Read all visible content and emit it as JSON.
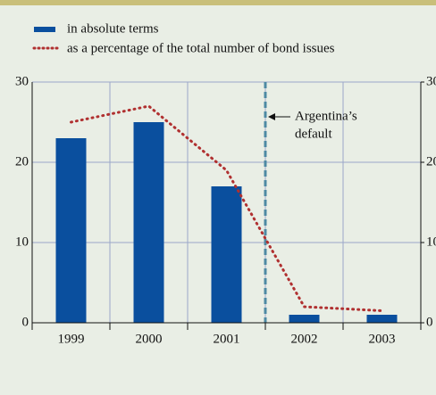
{
  "chart_data": {
    "type": "bar",
    "categories": [
      "1999",
      "2000",
      "2001",
      "2002",
      "2003"
    ],
    "series": [
      {
        "name": "in absolute terms",
        "color": "#0a4f9e",
        "values": [
          23,
          25,
          17,
          1,
          1
        ]
      },
      {
        "name": "as a percentage of the total number of bond issues",
        "color": "#b03030",
        "values": [
          25,
          27,
          19,
          2,
          1.5
        ],
        "axis": "y2",
        "type": "line"
      }
    ],
    "ylim": [
      0,
      30
    ],
    "yticks": [
      0,
      10,
      20,
      30
    ],
    "y2lim": [
      0,
      30
    ],
    "y2ticks": [
      0,
      10,
      20,
      30
    ],
    "grid": true,
    "annotation": [
      "Argentina’s",
      "default"
    ]
  }
}
